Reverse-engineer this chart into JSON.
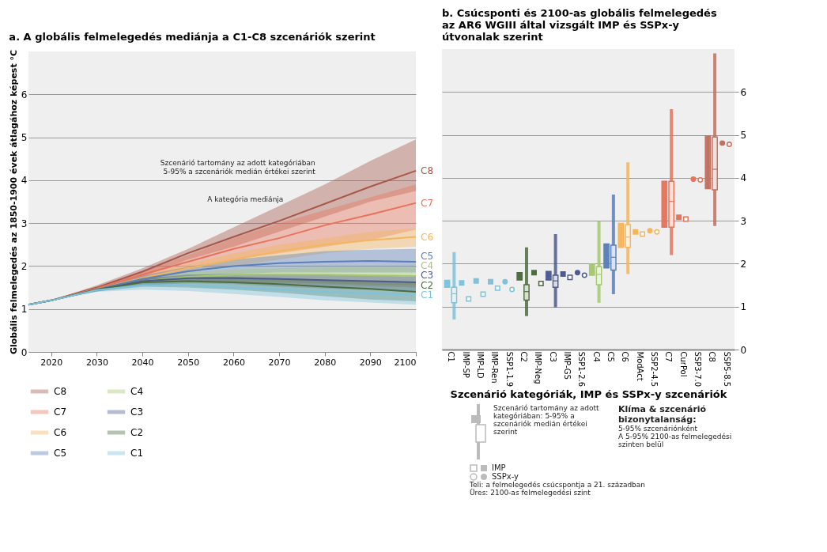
{
  "chart_data": [
    {
      "type": "line",
      "title": "a. A globális felmelegedés mediánja a C1-C8 szcenáriók szerint",
      "ylabel": "Globális felmelegedés az 1850-1900 évek átlagához képest °C",
      "x": [
        2015,
        2020,
        2030,
        2040,
        2050,
        2060,
        2070,
        2080,
        2090,
        2100
      ],
      "xlim": [
        2015,
        2100
      ],
      "xticks": [
        2020,
        2030,
        2040,
        2050,
        2060,
        2070,
        2080,
        2090,
        2100
      ],
      "ylim": [
        0,
        7
      ],
      "yticks": [
        0,
        1,
        2,
        3,
        4,
        5,
        6
      ],
      "grid": "y",
      "legend": "bottom",
      "annotations": [
        {
          "text": "Szcenárió tartomány az adott kategóriában 5-95% a szcenáriók medián értékei szerint",
          "x": 2080,
          "y": 3.9
        },
        {
          "text": "A kategória mediánja",
          "x": 2073,
          "y": 3.05
        }
      ],
      "series": [
        {
          "name": "C8",
          "color": "#a8574a",
          "values": [
            1.1,
            1.2,
            1.5,
            1.87,
            2.3,
            2.68,
            3.05,
            3.45,
            3.85,
            4.22
          ],
          "lower": [
            1.1,
            1.2,
            1.45,
            1.75,
            2.15,
            2.45,
            2.8,
            3.15,
            3.5,
            3.75
          ],
          "upper": [
            1.1,
            1.2,
            1.55,
            1.95,
            2.4,
            2.9,
            3.4,
            3.9,
            4.45,
            4.95
          ]
        },
        {
          "name": "C7",
          "color": "#e8735a",
          "values": [
            1.1,
            1.2,
            1.48,
            1.8,
            2.1,
            2.4,
            2.65,
            2.95,
            3.2,
            3.47
          ],
          "lower": [
            1.1,
            1.2,
            1.43,
            1.7,
            1.95,
            2.15,
            2.3,
            2.45,
            2.6,
            2.85
          ],
          "upper": [
            1.1,
            1.2,
            1.53,
            1.88,
            2.25,
            2.65,
            3.0,
            3.3,
            3.6,
            3.9
          ]
        },
        {
          "name": "C6",
          "color": "#f5b55c",
          "values": [
            1.1,
            1.2,
            1.46,
            1.72,
            1.95,
            2.15,
            2.35,
            2.5,
            2.6,
            2.68
          ],
          "lower": [
            1.1,
            1.2,
            1.42,
            1.65,
            1.85,
            2.0,
            2.15,
            2.3,
            2.4,
            2.45
          ],
          "upper": [
            1.1,
            1.2,
            1.5,
            1.78,
            2.05,
            2.3,
            2.5,
            2.65,
            2.8,
            2.88
          ]
        },
        {
          "name": "C5",
          "color": "#5b7fb8",
          "values": [
            1.1,
            1.2,
            1.46,
            1.7,
            1.88,
            2.0,
            2.07,
            2.1,
            2.12,
            2.1
          ],
          "lower": [
            1.1,
            1.2,
            1.42,
            1.62,
            1.75,
            1.82,
            1.85,
            1.85,
            1.85,
            1.85
          ],
          "upper": [
            1.1,
            1.2,
            1.5,
            1.78,
            1.98,
            2.15,
            2.25,
            2.35,
            2.38,
            2.4
          ]
        },
        {
          "name": "C4",
          "color": "#a5c86e",
          "values": [
            1.1,
            1.2,
            1.45,
            1.65,
            1.75,
            1.8,
            1.8,
            1.8,
            1.78,
            1.77
          ],
          "lower": [
            1.1,
            1.2,
            1.41,
            1.58,
            1.65,
            1.65,
            1.62,
            1.6,
            1.57,
            1.55
          ],
          "upper": [
            1.1,
            1.2,
            1.49,
            1.72,
            1.85,
            1.92,
            1.95,
            1.97,
            1.97,
            1.97
          ]
        },
        {
          "name": "C3",
          "color": "#4b5a8f",
          "values": [
            1.1,
            1.2,
            1.45,
            1.65,
            1.72,
            1.72,
            1.7,
            1.67,
            1.65,
            1.62
          ],
          "lower": [
            1.1,
            1.2,
            1.41,
            1.55,
            1.6,
            1.58,
            1.52,
            1.48,
            1.45,
            1.42
          ],
          "upper": [
            1.1,
            1.2,
            1.49,
            1.72,
            1.8,
            1.82,
            1.82,
            1.8,
            1.78,
            1.75
          ]
        },
        {
          "name": "C2",
          "color": "#4e6b3e",
          "values": [
            1.1,
            1.2,
            1.45,
            1.62,
            1.65,
            1.62,
            1.58,
            1.52,
            1.47,
            1.4
          ],
          "lower": [
            1.1,
            1.2,
            1.41,
            1.52,
            1.5,
            1.45,
            1.38,
            1.3,
            1.22,
            1.18
          ],
          "upper": [
            1.1,
            1.2,
            1.49,
            1.7,
            1.75,
            1.75,
            1.72,
            1.68,
            1.65,
            1.62
          ]
        },
        {
          "name": "C1",
          "color": "#7ec2db",
          "values": [
            1.1,
            1.2,
            1.44,
            1.55,
            1.55,
            1.5,
            1.45,
            1.4,
            1.37,
            1.33
          ],
          "lower": [
            1.1,
            1.2,
            1.4,
            1.45,
            1.42,
            1.35,
            1.28,
            1.2,
            1.15,
            1.1
          ],
          "upper": [
            1.1,
            1.2,
            1.48,
            1.62,
            1.65,
            1.62,
            1.6,
            1.57,
            1.53,
            1.5
          ]
        }
      ]
    },
    {
      "type": "box",
      "title": "b. Csúcsponti és 2100-as globális felmelegedés az AR6 WGIII által vizsgált IMP és SSPx-y útvonalak szerint",
      "xlabel": "Szcenárió kategóriák, IMP és SSPx-y szcenáriók",
      "categories": [
        "C1",
        "IMP-SP",
        "IMP-LD",
        "IMP-Ren",
        "SSP1-1.9",
        "C2",
        "IMP-Neg",
        "C3",
        "IMP-GS",
        "SSP1-2.6",
        "C4",
        "C5",
        "C6",
        "ModAct",
        "SSP2-4.5",
        "C7",
        "CurPol",
        "SSP3-7.0",
        "C8",
        "SSP5-8.5"
      ],
      "y2lim": [
        0,
        7
      ],
      "y2ticks": [
        0,
        1,
        2,
        3,
        4,
        5,
        6
      ],
      "grid": "y",
      "annotations": [
        "Szcenárió tartomány az adott kategóriában: 5-95% a szcenáriók medián értékei szerint",
        "Klíma & szcenárió bizonytalanság:",
        "5-95% szcenáriónként",
        "A 5-95% 2100-as felmelegedési szinten belül",
        "IMP",
        "SSPx-y",
        "Teli: a felmelegedés csúcspontja a 21. században",
        "Üres: 2100-as felmelegedési szint"
      ],
      "series": [
        {
          "type": "box",
          "axis": "y2",
          "colors": [
            "#7ec2db",
            null,
            null,
            null,
            null,
            "#4e6b3e",
            null,
            "#4b5a8f",
            null,
            null,
            "#a5c86e",
            "#5b7fb8",
            "#f5b55c",
            null,
            null,
            "#e8735a",
            null,
            null,
            "#c0705f",
            null
          ],
          "boxes": [
            {
              "low": 1.45,
              "q1": 1.45,
              "median": 1.55,
              "q3": 1.61,
              "high": 1.61
            },
            null,
            null,
            null,
            null,
            {
              "low": 1.62,
              "q1": 1.62,
              "median": 1.72,
              "q3": 1.79,
              "high": 1.79
            },
            null,
            {
              "low": 1.62,
              "q1": 1.62,
              "median": 1.72,
              "q3": 1.82,
              "high": 1.82
            },
            null,
            null,
            {
              "low": 1.73,
              "q1": 1.73,
              "median": 1.9,
              "q3": 1.99,
              "high": 1.99
            },
            {
              "low": 1.9,
              "q1": 1.9,
              "median": 2.2,
              "q3": 2.46,
              "high": 2.46
            },
            {
              "low": 2.38,
              "q1": 2.38,
              "median": 2.7,
              "q3": 2.94,
              "high": 2.94
            },
            null,
            null,
            {
              "low": 2.85,
              "q1": 2.85,
              "median": 3.5,
              "q3": 3.92,
              "high": 3.92
            },
            null,
            null,
            {
              "low": 3.75,
              "q1": 3.75,
              "median": 4.25,
              "q3": 4.98,
              "high": 4.98
            },
            null
          ]
        },
        {
          "type": "box",
          "axis": "y2",
          "colors": [
            "#7ec2db",
            null,
            null,
            null,
            null,
            "#4e6b3e",
            null,
            "#4b5a8f",
            null,
            null,
            "#a5c86e",
            "#5b7fb8",
            "#f5b55c",
            null,
            null,
            "#e8735a",
            null,
            null,
            "#c0705f",
            null
          ],
          "boxes": [
            {
              "low": 0.7,
              "q1": 1.09,
              "median": 1.3,
              "q3": 1.45,
              "high": 2.27
            },
            null,
            null,
            null,
            null,
            {
              "low": 0.78,
              "q1": 1.15,
              "median": 1.35,
              "q3": 1.51,
              "high": 2.38
            },
            null,
            {
              "low": 0.98,
              "q1": 1.45,
              "median": 1.6,
              "q3": 1.73,
              "high": 2.69
            },
            null,
            null,
            {
              "low": 1.09,
              "q1": 1.51,
              "median": 1.75,
              "q3": 1.93,
              "high": 2.99
            },
            {
              "low": 1.29,
              "q1": 1.85,
              "median": 2.15,
              "q3": 2.43,
              "high": 3.61
            },
            {
              "low": 1.76,
              "q1": 2.38,
              "median": 2.62,
              "q3": 2.91,
              "high": 4.36
            },
            null,
            null,
            {
              "low": 2.2,
              "q1": 2.85,
              "median": 3.45,
              "q3": 3.92,
              "high": 5.6
            },
            null,
            null,
            {
              "low": 2.88,
              "q1": 3.72,
              "median": 4.2,
              "q3": 4.95,
              "high": 6.9
            },
            null
          ]
        },
        {
          "type": "scatter",
          "axis": "y2",
          "marker": "square",
          "x": [
            "IMP-SP",
            "IMP-LD",
            "IMP-Ren",
            "IMP-Neg",
            "IMP-GS",
            "ModAct",
            "CurPol"
          ],
          "values": [
            1.55,
            1.6,
            1.58,
            1.79,
            1.76,
            2.74,
            3.08
          ],
          "colors": [
            "#7ec2db",
            "#7ec2db",
            "#7ec2db",
            "#4e6b3e",
            "#4b5a8f",
            "#f5b55c",
            "#e8735a"
          ]
        },
        {
          "type": "scatter",
          "axis": "y2",
          "marker": "square",
          "x": [
            "IMP-SP",
            "IMP-LD",
            "IMP-Ren",
            "IMP-Neg",
            "IMP-GS",
            "ModAct",
            "CurPol"
          ],
          "values": [
            1.18,
            1.29,
            1.43,
            1.54,
            1.68,
            2.69,
            3.04
          ],
          "colors": [
            "#7ec2db",
            "#7ec2db",
            "#7ec2db",
            "#4e6b3e",
            "#4b5a8f",
            "#f5b55c",
            "#e8735a"
          ]
        },
        {
          "type": "scatter",
          "axis": "y2",
          "marker": "circle",
          "x": [
            "SSP1-1.9",
            "SSP1-2.6",
            "SSP2-4.5",
            "SSP3-7.0",
            "SSP5-8.5"
          ],
          "values": [
            1.58,
            1.79,
            2.77,
            3.97,
            4.81
          ],
          "colors": [
            "#7ec2db",
            "#4b5a8f",
            "#f5b55c",
            "#e8735a",
            "#c0705f"
          ]
        },
        {
          "type": "scatter",
          "axis": "y2",
          "marker": "circle",
          "x": [
            "SSP1-1.9",
            "SSP1-2.6",
            "SSP2-4.5",
            "SSP3-7.0",
            "SSP5-8.5"
          ],
          "values": [
            1.4,
            1.73,
            2.74,
            3.95,
            4.78
          ],
          "colors": [
            "#7ec2db",
            "#4b5a8f",
            "#f5b55c",
            "#e8735a",
            "#c0705f"
          ]
        }
      ]
    }
  ]
}
